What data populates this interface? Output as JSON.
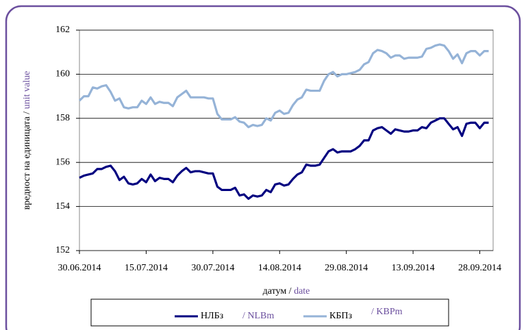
{
  "chart_data": {
    "type": "line",
    "ylabel": "вредност на единицата /",
    "ylabel_en": "unit value",
    "xlabel": "датум /",
    "xlabel_en": "date",
    "categories": [
      "30.06.2014",
      null,
      null,
      null,
      null,
      null,
      null,
      null,
      null,
      null,
      null,
      null,
      null,
      null,
      null,
      "15.07.2014",
      null,
      null,
      null,
      null,
      null,
      null,
      null,
      null,
      null,
      null,
      null,
      null,
      null,
      null,
      "30.07.2014",
      null,
      null,
      null,
      null,
      null,
      null,
      null,
      null,
      null,
      null,
      null,
      null,
      null,
      null,
      "14.08.2014",
      null,
      null,
      null,
      null,
      null,
      null,
      null,
      null,
      null,
      null,
      null,
      null,
      null,
      null,
      "29.08.2014",
      null,
      null,
      null,
      null,
      null,
      null,
      null,
      null,
      null,
      null,
      null,
      null,
      null,
      null,
      "13.09.2014",
      null,
      null,
      null,
      null,
      null,
      null,
      null,
      null,
      null,
      null,
      null,
      null,
      null,
      null,
      "28.09.2014",
      null,
      null
    ],
    "series": [
      {
        "name": "НЛБз",
        "name_en": "/ NLBm",
        "color": "#000080",
        "values": [
          155.3,
          155.4,
          155.45,
          155.5,
          155.7,
          155.7,
          155.8,
          155.85,
          155.6,
          155.2,
          155.35,
          155.05,
          155.0,
          155.05,
          155.25,
          155.1,
          155.45,
          155.15,
          155.3,
          155.25,
          155.25,
          155.1,
          155.4,
          155.6,
          155.75,
          155.55,
          155.6,
          155.6,
          155.55,
          155.5,
          155.5,
          154.9,
          154.75,
          154.75,
          154.75,
          154.85,
          154.5,
          154.55,
          154.35,
          154.5,
          154.45,
          154.5,
          154.75,
          154.65,
          155.0,
          155.05,
          154.95,
          155.0,
          155.25,
          155.45,
          155.55,
          155.9,
          155.85,
          155.85,
          155.9,
          156.2,
          156.5,
          156.6,
          156.45,
          156.5,
          156.5,
          156.5,
          156.6,
          156.75,
          157.0,
          157.0,
          157.45,
          157.55,
          157.6,
          157.45,
          157.3,
          157.5,
          157.45,
          157.4,
          157.4,
          157.45,
          157.45,
          157.6,
          157.55,
          157.8,
          157.9,
          158.0,
          158.0,
          157.75,
          157.5,
          157.6,
          157.2,
          157.75,
          157.8,
          157.8,
          157.55,
          157.8,
          157.8
        ]
      },
      {
        "name": "КБПз",
        "name_en": "/ KBPm",
        "color": "#95b3d7",
        "values": [
          158.8,
          159.0,
          159.0,
          159.4,
          159.35,
          159.45,
          159.5,
          159.2,
          158.8,
          158.9,
          158.5,
          158.45,
          158.5,
          158.5,
          158.8,
          158.65,
          158.95,
          158.65,
          158.75,
          158.7,
          158.7,
          158.55,
          158.95,
          159.1,
          159.25,
          158.95,
          158.95,
          158.95,
          158.95,
          158.9,
          158.9,
          158.2,
          157.95,
          157.95,
          157.95,
          158.05,
          157.85,
          157.8,
          157.6,
          157.7,
          157.65,
          157.7,
          158.0,
          157.9,
          158.25,
          158.35,
          158.2,
          158.25,
          158.6,
          158.85,
          158.95,
          159.3,
          159.25,
          159.25,
          159.25,
          159.7,
          160.0,
          160.1,
          159.9,
          160.0,
          160.0,
          160.05,
          160.1,
          160.2,
          160.45,
          160.55,
          160.95,
          161.1,
          161.05,
          160.95,
          160.75,
          160.85,
          160.85,
          160.7,
          160.75,
          160.75,
          160.75,
          160.8,
          161.15,
          161.2,
          161.3,
          161.35,
          161.3,
          161.05,
          160.7,
          160.9,
          160.5,
          160.95,
          161.05,
          161.05,
          160.85,
          161.05,
          161.05
        ]
      }
    ],
    "ylim": [
      152,
      162
    ],
    "yticks": [
      152,
      154,
      156,
      158,
      160,
      162
    ],
    "grid": true
  }
}
